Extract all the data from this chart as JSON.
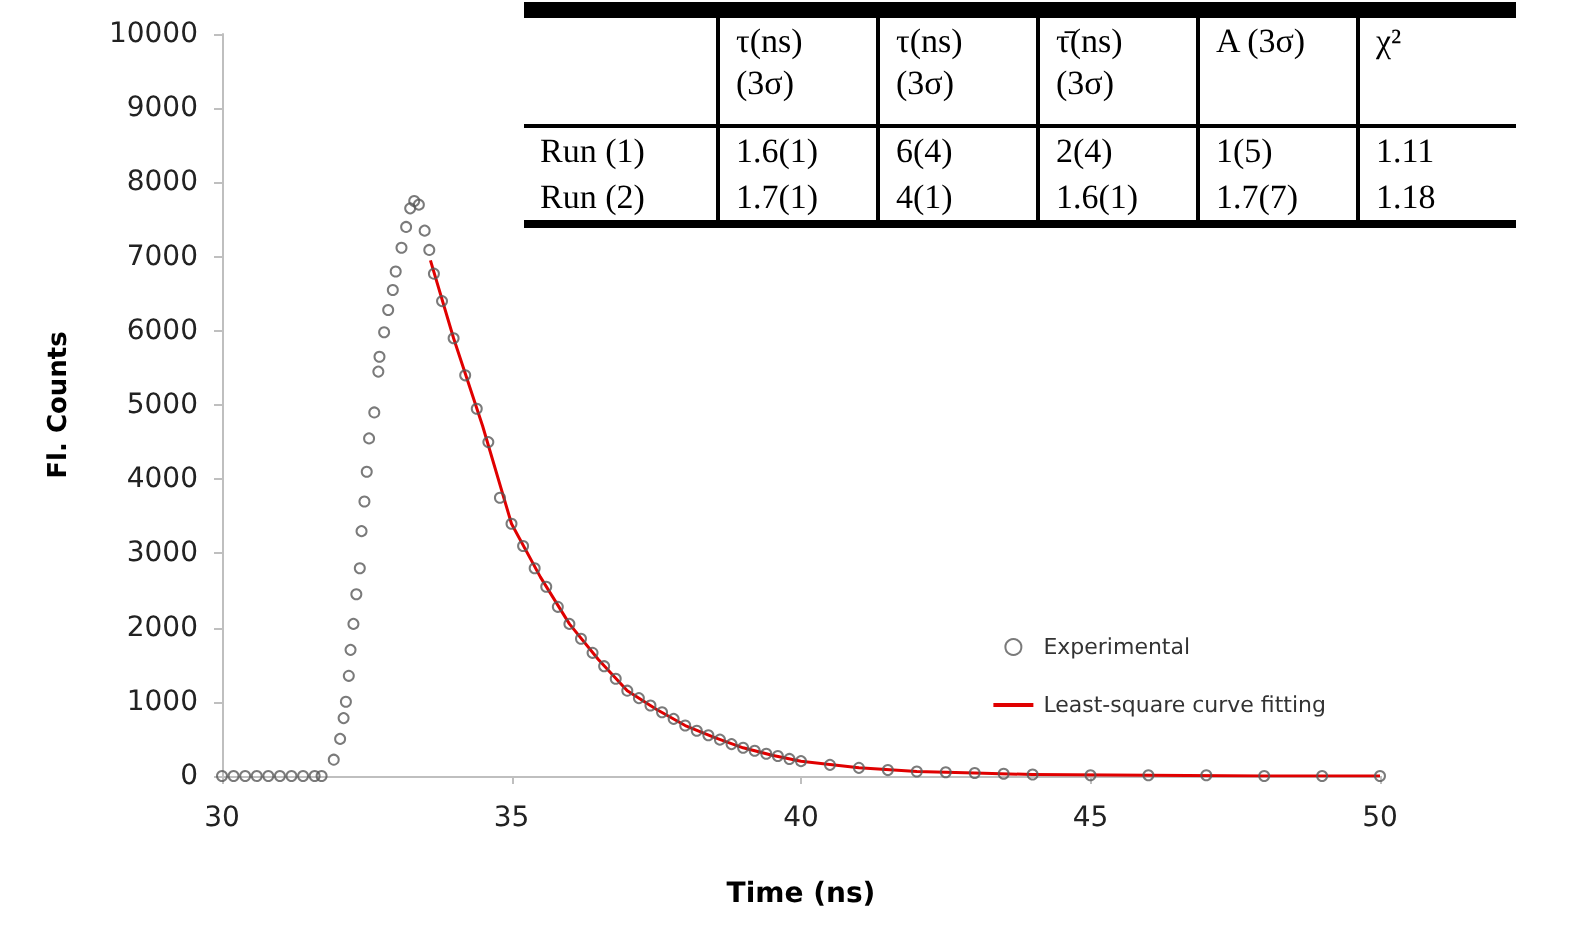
{
  "chart_data": {
    "type": "scatter",
    "xlabel": "Time (ns)",
    "ylabel": "Fl. Counts",
    "xlim": [
      30,
      50
    ],
    "xticks": [
      30,
      35,
      40,
      45,
      50
    ],
    "ylim": [
      0,
      10000
    ],
    "yticks": [
      0,
      1000,
      2000,
      3000,
      4000,
      5000,
      6000,
      7000,
      8000,
      9000,
      10000
    ],
    "grid": false,
    "legend": "right",
    "series": [
      {
        "name": "Experimental",
        "marker": "circle",
        "color": "#595959",
        "x": [
          30,
          30.2,
          30.4,
          30.6,
          30.8,
          31.0,
          31.2,
          31.4,
          31.6,
          31.72,
          31.93,
          32.04,
          32.1,
          32.14,
          32.19,
          32.22,
          32.27,
          32.32,
          32.38,
          32.41,
          32.46,
          32.5,
          32.54,
          32.63,
          32.7,
          32.72,
          32.8,
          32.87,
          32.95,
          33.0,
          33.1,
          33.18,
          33.25,
          33.32,
          33.4,
          33.5,
          33.58,
          33.66,
          33.8,
          34.0,
          34.2,
          34.4,
          34.6,
          34.8,
          35.0,
          35.2,
          35.4,
          35.6,
          35.8,
          36.0,
          36.2,
          36.4,
          36.6,
          36.8,
          37.0,
          37.2,
          37.4,
          37.6,
          37.8,
          38.0,
          38.2,
          38.4,
          38.6,
          38.8,
          39.0,
          39.2,
          39.4,
          39.6,
          39.8,
          40.0,
          40.5,
          41,
          41.5,
          42,
          42.5,
          43,
          43.5,
          44,
          45,
          46,
          47,
          48,
          49,
          50
        ],
        "values": [
          0,
          0,
          0,
          0,
          0,
          0,
          0,
          0,
          0,
          0,
          220,
          500,
          780,
          1000,
          1350,
          1700,
          2050,
          2450,
          2800,
          3300,
          3700,
          4100,
          4550,
          4900,
          5450,
          5650,
          5980,
          6280,
          6550,
          6800,
          7120,
          7400,
          7650,
          7750,
          7700,
          7350,
          7090,
          6770,
          6400,
          5900,
          5400,
          4950,
          4500,
          3750,
          3400,
          3100,
          2800,
          2550,
          2280,
          2050,
          1850,
          1660,
          1480,
          1310,
          1150,
          1050,
          950,
          860,
          770,
          680,
          610,
          550,
          490,
          430,
          380,
          340,
          300,
          270,
          230,
          200,
          150,
          110,
          80,
          60,
          50,
          40,
          30,
          20,
          10,
          10,
          10,
          0,
          0,
          0
        ]
      },
      {
        "name": "Least-square curve fitting",
        "type": "line",
        "marker": "none",
        "line_style": "solid",
        "color": "#e00000",
        "x": [
          33.6,
          34.0,
          34.5,
          35,
          35.5,
          36,
          36.5,
          37,
          37.5,
          38,
          38.5,
          39,
          39.5,
          40,
          41,
          42,
          43,
          44,
          46,
          48,
          50
        ],
        "values": [
          6950,
          5900,
          4720,
          3400,
          2680,
          2050,
          1570,
          1150,
          900,
          680,
          520,
          380,
          280,
          200,
          110,
          60,
          40,
          20,
          10,
          0,
          0
        ]
      }
    ],
    "annotations": [
      "τ(ns) (3σ)",
      "τ(ns) (3σ)",
      "τ̄(ns) (3σ)",
      "A (3σ)",
      "χ²",
      "Run (1)",
      "1.6(1)",
      "6(4)",
      "2(4)",
      "1(5)",
      "1.11",
      "Run (2)",
      "1.7(1)",
      "4(1)",
      "1.6(1)",
      "1.7(7)",
      "1.18"
    ]
  }
}
